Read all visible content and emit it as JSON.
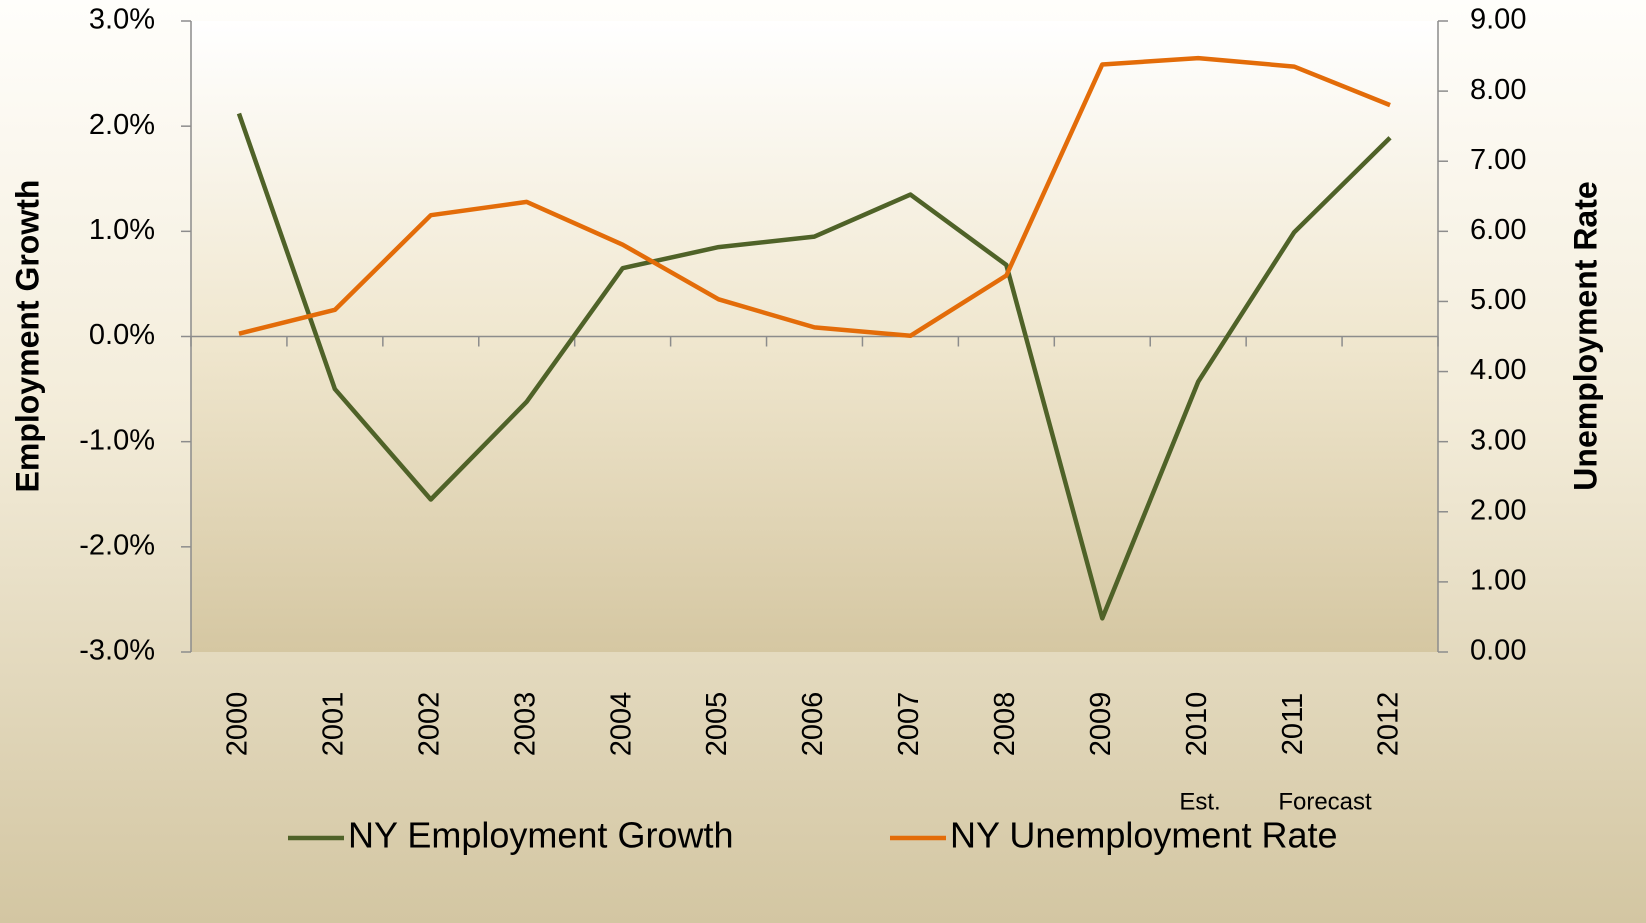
{
  "chart_data": {
    "type": "line",
    "categories": [
      "2000",
      "2001",
      "2002",
      "2003",
      "2004",
      "2005",
      "2006",
      "2007",
      "2008",
      "2009",
      "2010",
      "2011",
      "2012"
    ],
    "series": [
      {
        "name": "NY Employment Growth",
        "color": "#4f6228",
        "axis": "y",
        "values": [
          2.12,
          -0.5,
          -1.55,
          -0.62,
          0.65,
          0.85,
          0.95,
          1.35,
          0.68,
          -2.68,
          -0.43,
          0.99,
          1.89
        ]
      },
      {
        "name": "NY Unemployment Rate",
        "color": "#e36c09",
        "axis": "y2",
        "values": [
          4.54,
          4.88,
          6.23,
          6.42,
          5.81,
          5.03,
          4.63,
          4.51,
          5.37,
          8.38,
          8.47,
          8.35,
          7.8
        ]
      }
    ],
    "ylabel": "Employment Growth",
    "y2label": "Unemployment Rate",
    "ylim": [
      -3,
      3
    ],
    "yticks": [
      {
        "value": 3,
        "label": "3.0%"
      },
      {
        "value": 2,
        "label": "2.0%"
      },
      {
        "value": 1,
        "label": "1.0%"
      },
      {
        "value": 0,
        "label": "0.0%"
      },
      {
        "value": -1,
        "label": "-1.0%"
      },
      {
        "value": -2,
        "label": "-2.0%"
      },
      {
        "value": -3,
        "label": "-3.0%"
      }
    ],
    "y2lim": [
      0,
      9
    ],
    "y2ticks": [
      {
        "value": 9,
        "label": "9.00"
      },
      {
        "value": 8,
        "label": "8.00"
      },
      {
        "value": 7,
        "label": "7.00"
      },
      {
        "value": 6,
        "label": "6.00"
      },
      {
        "value": 5,
        "label": "5.00"
      },
      {
        "value": 4,
        "label": "4.00"
      },
      {
        "value": 3,
        "label": "3.00"
      },
      {
        "value": 2,
        "label": "2.00"
      },
      {
        "value": 1,
        "label": "1.00"
      },
      {
        "value": 0,
        "label": "0.00"
      }
    ],
    "annotations": [
      "Est.",
      "Forecast"
    ],
    "legend": "bottom"
  }
}
